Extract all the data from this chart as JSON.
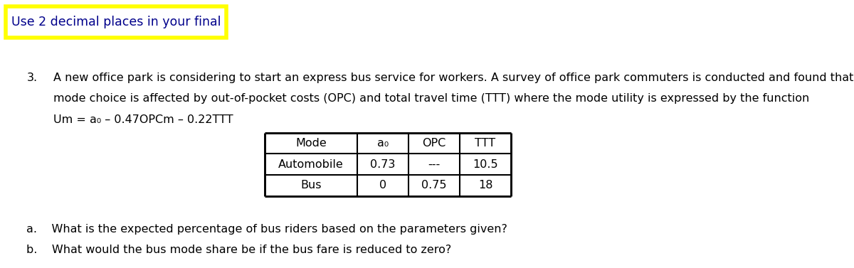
{
  "banner_text": "Use 2 decimal places in your final",
  "banner_color": "#FFFF00",
  "banner_text_color": "#00008B",
  "question_number": "3.",
  "question_text_line1": "A new office park is considering to start an express bus service for workers. A survey of office park commuters is conducted and found that",
  "question_text_line2": "mode choice is affected by out-of-pocket costs (OPC) and total travel time (TTT) where the mode utility is expressed by the function",
  "question_text_line3": "Um = a₀ – 0.47OPCm – 0.22TTT",
  "table_headers": [
    "Mode",
    "a₀",
    "OPC",
    "TTT"
  ],
  "table_row1": [
    "Automobile",
    "0.73",
    "---",
    "10.5"
  ],
  "table_row2": [
    "Bus",
    "0",
    "0.75",
    "18"
  ],
  "sub_a": "a.    What is the expected percentage of bus riders based on the parameters given?",
  "sub_b": "b.    What would the bus mode share be if the bus fare is reduced to zero?",
  "bg_color": "#FFFFFF",
  "text_color": "#000000",
  "font_size_main": 11.5,
  "font_size_banner": 12.5
}
